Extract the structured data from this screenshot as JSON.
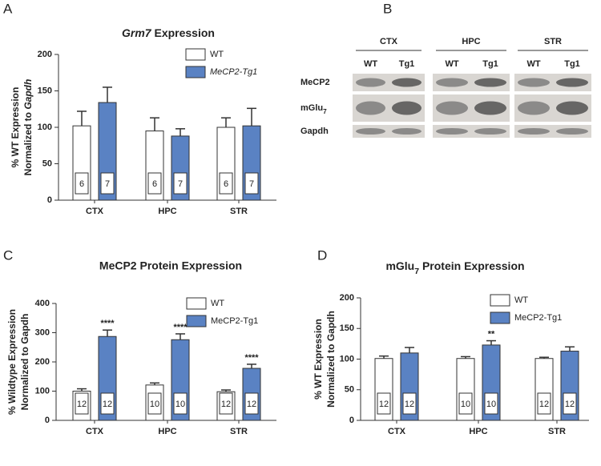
{
  "panel_labels": [
    "A",
    "B",
    "C",
    "D"
  ],
  "chart_data": [
    {
      "type": "bar",
      "title": [
        {
          "text": "Grm7",
          "italic": true
        },
        {
          "text": " Expression"
        }
      ],
      "ylabel": [
        "% WT Expression",
        [
          {
            "text": "Normalized to "
          },
          {
            "text": "Gapdh",
            "italic": true
          }
        ]
      ],
      "categories": [
        "CTX",
        "HPC",
        "STR"
      ],
      "series": [
        {
          "name": "WT",
          "color": "#ffffff",
          "values": [
            102,
            95,
            100
          ],
          "errors": [
            20,
            18,
            13
          ],
          "n": [
            6,
            6,
            6
          ]
        },
        {
          "name": "MeCP2-Tg1",
          "name_italic": true,
          "color": "#5a82c3",
          "values": [
            134,
            88,
            102
          ],
          "errors": [
            21,
            10,
            24
          ],
          "n": [
            7,
            7,
            7
          ]
        }
      ],
      "ylim": [
        0,
        200
      ],
      "yticks": [
        0,
        50,
        100,
        150,
        200
      ]
    },
    {
      "type": "bar",
      "title": "MeCP2 Protein Expression",
      "ylabel": [
        "% Wildtype Expression",
        "Normalized to Gapdh"
      ],
      "categories": [
        "CTX",
        "HPC",
        "STR"
      ],
      "series": [
        {
          "name": "WT",
          "color": "#ffffff",
          "values": [
            100,
            121,
            98
          ],
          "errors": [
            8,
            7,
            6
          ],
          "n": [
            12,
            10,
            12
          ]
        },
        {
          "name": "MeCP2-Tg1",
          "color": "#5a82c3",
          "values": [
            287,
            276,
            178
          ],
          "errors": [
            22,
            20,
            14
          ],
          "n": [
            12,
            10,
            12
          ],
          "annotations": [
            "****",
            "****",
            "****"
          ]
        }
      ],
      "ylim": [
        0,
        400
      ],
      "yticks": [
        0,
        100,
        200,
        300,
        400
      ]
    },
    {
      "type": "bar",
      "title": [
        {
          "text": "mGlu"
        },
        {
          "text": "7",
          "sub": true
        },
        {
          "text": " Protein  Expression"
        }
      ],
      "ylabel": [
        "% WT Expression",
        "Normalized to Gapdh"
      ],
      "categories": [
        "CTX",
        "HPC",
        "STR"
      ],
      "series": [
        {
          "name": "WT",
          "color": "#ffffff",
          "values": [
            101,
            101,
            101
          ],
          "errors": [
            4,
            3,
            2
          ],
          "n": [
            12,
            10,
            12
          ]
        },
        {
          "name": "MeCP2-Tg1",
          "color": "#5a82c3",
          "values": [
            110,
            123,
            113
          ],
          "errors": [
            9,
            7,
            7
          ],
          "n": [
            12,
            10,
            12
          ],
          "annotations": [
            null,
            "**",
            null
          ]
        }
      ],
      "ylim": [
        0,
        200
      ],
      "yticks": [
        0,
        50,
        100,
        150,
        200
      ]
    }
  ],
  "blot": {
    "groups": [
      "CTX",
      "HPC",
      "STR"
    ],
    "lanes": [
      "WT",
      "Tg1"
    ],
    "rows": [
      "MeCP2",
      [
        {
          "text": "mGlu"
        },
        {
          "text": "7",
          "sub": true
        }
      ],
      "Gapdh"
    ]
  }
}
